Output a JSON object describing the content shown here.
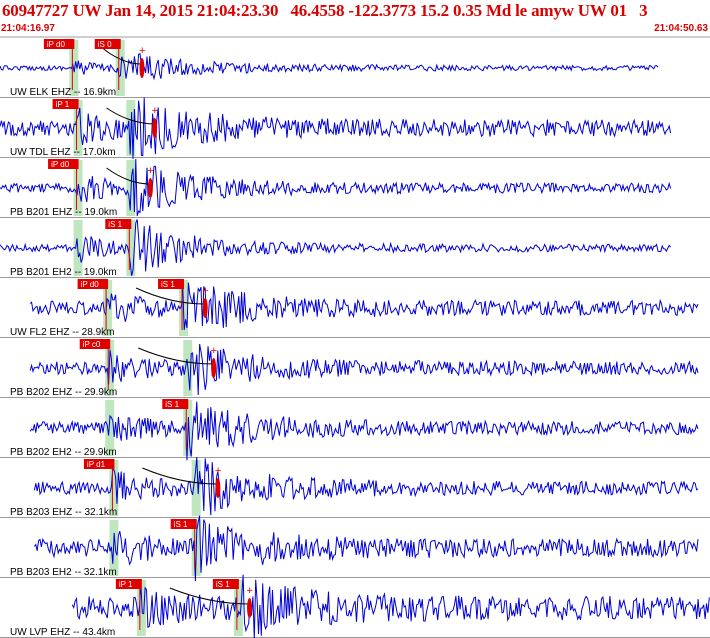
{
  "header": {
    "title": "60947727 UW Jan 14, 2015 21:04:23.30   46.4558 -122.3773 15.2 0.35 Md le amyw UW 01   3",
    "start_time": "21:04:16.97",
    "end_time": "21:04:50.63"
  },
  "colors": {
    "trace": "#0000d8",
    "pick": "#e00000",
    "pick_window": "#bfe6bf",
    "separator": "#9a9a9a",
    "title": "#d90000"
  },
  "chart_data": {
    "type": "seismogram",
    "x_range": [
      16.97,
      50.63
    ],
    "x_unit": "seconds after 21:04",
    "traces": [
      {
        "label": "UW ELK EHZ -- 16.9km",
        "data_start": 16.97,
        "data_end": 48.2,
        "amplitude": 0.45,
        "noise": 0.08,
        "picks": [
          {
            "label": "iP d0",
            "t": 20.4
          },
          {
            "label": "iS 0",
            "t": 22.6
          }
        ],
        "dur_mark": 23.7
      },
      {
        "label": "UW TDL EHZ -- 17.0km",
        "data_start": 16.97,
        "data_end": 48.8,
        "amplitude": 0.85,
        "noise": 0.28,
        "picks": [
          {
            "label": "iP 1",
            "t": 20.6
          },
          {
            "label": "",
            "t": 23.1
          }
        ],
        "dur_mark": 24.3
      },
      {
        "label": "PB B201 EHZ -- 19.0km",
        "data_start": 16.97,
        "data_end": 48.8,
        "amplitude": 0.8,
        "noise": 0.16,
        "picks": [
          {
            "label": "iP d0",
            "t": 20.6
          },
          {
            "label": "",
            "t": 23.1
          }
        ],
        "dur_mark": 24.1
      },
      {
        "label": "PB B201 EH2 -- 19.0km",
        "data_start": 16.97,
        "data_end": 48.8,
        "amplitude": 0.8,
        "noise": 0.12,
        "picks": [
          {
            "label": "",
            "t": 20.6
          },
          {
            "label": "iS 1",
            "t": 23.1
          }
        ],
        "dur_mark": null
      },
      {
        "label": "UW FL2 EHZ -- 28.9km",
        "data_start": 18.4,
        "data_end": 50.1,
        "amplitude": 0.75,
        "noise": 0.25,
        "picks": [
          {
            "label": "iP d0",
            "t": 22.0
          },
          {
            "label": "iS 1",
            "t": 25.6
          }
        ],
        "dur_mark": 26.7
      },
      {
        "label": "PB B202 EHZ -- 29.9km",
        "data_start": 18.4,
        "data_end": 50.1,
        "amplitude": 0.8,
        "noise": 0.22,
        "picks": [
          {
            "label": "iP c0",
            "t": 22.1
          },
          {
            "label": "",
            "t": 25.8
          }
        ],
        "dur_mark": 27.1
      },
      {
        "label": "PB B202 EH2 -- 29.9km",
        "data_start": 18.4,
        "data_end": 50.1,
        "amplitude": 0.8,
        "noise": 0.22,
        "picks": [
          {
            "label": "",
            "t": 22.1
          },
          {
            "label": "iS 1",
            "t": 25.8
          }
        ],
        "dur_mark": null
      },
      {
        "label": "PB B203 EHZ -- 32.1km",
        "data_start": 18.6,
        "data_end": 50.1,
        "amplitude": 0.85,
        "noise": 0.22,
        "picks": [
          {
            "label": "iP d1",
            "t": 22.3
          },
          {
            "label": "",
            "t": 26.2
          }
        ],
        "dur_mark": 27.3
      },
      {
        "label": "PB B203 EH2 -- 32.1km",
        "data_start": 18.6,
        "data_end": 50.1,
        "amplitude": 0.8,
        "noise": 0.3,
        "picks": [
          {
            "label": "",
            "t": 22.3
          },
          {
            "label": "iS 1",
            "t": 26.2
          }
        ],
        "dur_mark": null
      },
      {
        "label": "UW LVP EHZ -- 43.4km",
        "data_start": 20.4,
        "data_end": 50.63,
        "amplitude": 0.85,
        "noise": 0.4,
        "picks": [
          {
            "label": "iP 1",
            "t": 23.6
          },
          {
            "label": "iS 1",
            "t": 28.2
          }
        ],
        "dur_mark": 28.8
      }
    ]
  }
}
